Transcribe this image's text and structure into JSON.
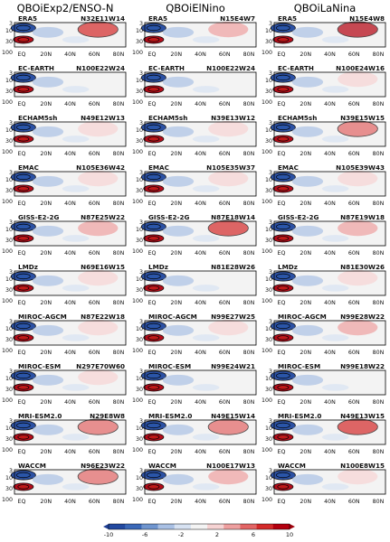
{
  "column_titles": [
    "QBOiExp2/ENSO-N",
    "QBOiElNino",
    "QBOiLaNina"
  ],
  "colorbar": {
    "ticks": [
      "-10",
      "-6",
      "-2",
      "2",
      "6",
      "10"
    ],
    "colors": [
      "#2249a0",
      "#3a68b8",
      "#6f95cf",
      "#a9c0e4",
      "#d7e2f2",
      "#f4f4f4",
      "#f6d3d3",
      "#ee9f9f",
      "#e36565",
      "#d42a2a",
      "#b3000f"
    ]
  },
  "chart_data": {
    "type": "heatmap",
    "y_ticks": [
      "3",
      "10",
      "30",
      "100"
    ],
    "x_ticks": [
      "EQ",
      "20N",
      "40N",
      "60N",
      "80N"
    ],
    "panels": [
      [
        "ERA5",
        "N32E11W14",
        "ERA5",
        "N15E4W7",
        "ERA5",
        "N15E4W8"
      ],
      [
        "EC-EARTH",
        "N100E22W24",
        "EC-EARTH",
        "N100E22W24",
        "EC-EARTH",
        "N100E24W16"
      ],
      [
        "ECHAM5sh",
        "N49E12W13",
        "ECHAM5sh",
        "N39E13W12",
        "ECHAM5sh",
        "N39E15W15"
      ],
      [
        "EMAC",
        "N105E36W42",
        "EMAC",
        "N105E35W37",
        "EMAC",
        "N105E39W43"
      ],
      [
        "GISS-E2-2G",
        "N87E25W22",
        "GISS-E2-2G",
        "N87E18W14",
        "GISS-E2-2G",
        "N87E19W18"
      ],
      [
        "LMDz",
        "N69E16W15",
        "LMDz",
        "N81E28W26",
        "LMDz",
        "N81E30W26"
      ],
      [
        "MIROC-AGCM",
        "N87E22W18",
        "MIROC-AGCM",
        "N99E27W25",
        "MIROC-AGCM",
        "N99E28W22"
      ],
      [
        "MIROC-ESM",
        "N297E70W60",
        "MIROC-ESM",
        "N99E24W21",
        "MIROC-ESM",
        "N99E18W22"
      ],
      [
        "MRI-ESM2.0",
        "N29E8W8",
        "MRI-ESM2.0",
        "N49E15W14",
        "MRI-ESM2.0",
        "N49E13W15"
      ],
      [
        "WACCM",
        "N96E23W22",
        "WACCM",
        "N100E17W13",
        "WACCM",
        "N100E8W15"
      ]
    ],
    "high_lat_anomaly": [
      [
        8,
        3,
        9
      ],
      [
        0,
        0,
        1
      ],
      [
        1,
        1,
        5
      ],
      [
        2,
        1,
        1
      ],
      [
        3,
        8,
        4
      ],
      [
        1,
        0,
        1
      ],
      [
        1,
        1,
        3
      ],
      [
        1,
        0,
        0
      ],
      [
        6,
        5,
        8
      ],
      [
        6,
        3,
        2
      ]
    ],
    "colorbar_range": [
      -10,
      10
    ]
  }
}
